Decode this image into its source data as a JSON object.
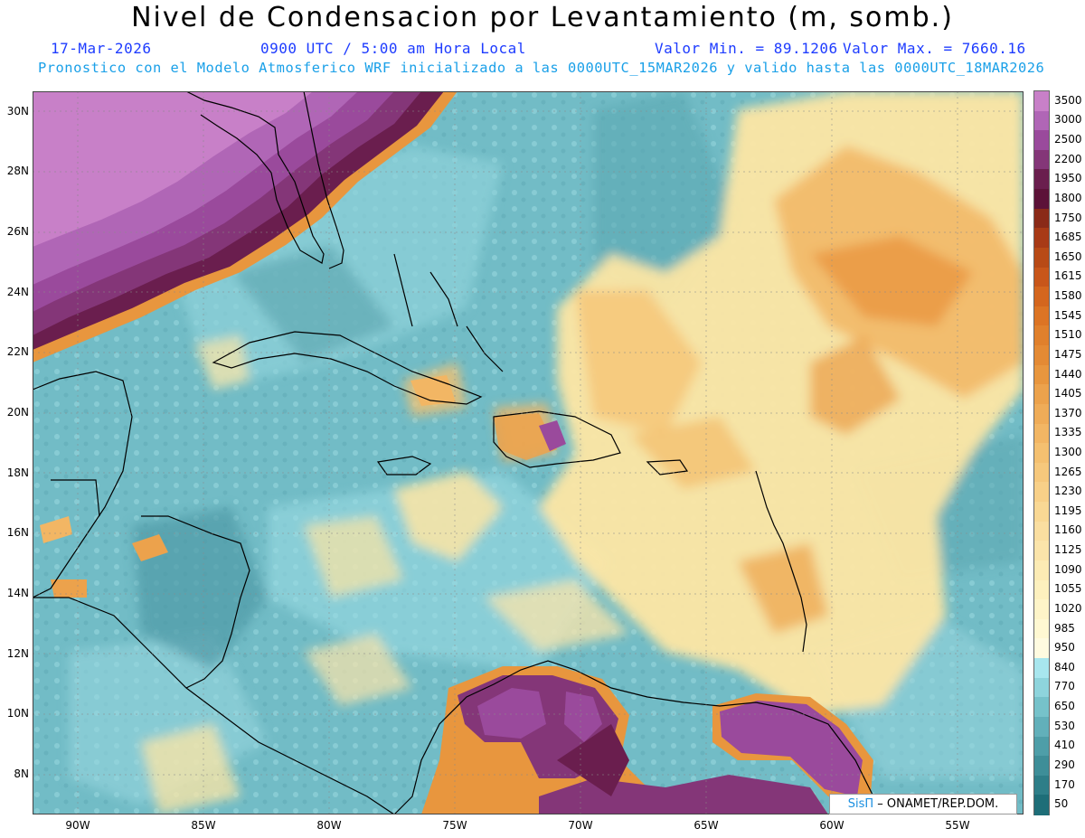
{
  "header": {
    "title": "Nivel de Condensacion por Levantamiento (m, somb.)",
    "date": "17-Mar-2026",
    "time": "0900 UTC / 5:00 am Hora Local",
    "min_label": "Valor Min. = 89.1206",
    "max_label": "Valor Max. = 7660.16",
    "model_line": "Pronostico con el Modelo Atmosferico WRF inicializado a las 0000UTC_15MAR2026 y valido hasta las  0000UTC_18MAR2026"
  },
  "map": {
    "lat_labels": [
      "30N",
      "28N",
      "26N",
      "24N",
      "22N",
      "20N",
      "18N",
      "16N",
      "14N",
      "12N",
      "10N",
      "8N"
    ],
    "lon_labels": [
      "90W",
      "85W",
      "80W",
      "75W",
      "70W",
      "65W",
      "60W",
      "55W"
    ],
    "lat_range": [
      7,
      31
    ],
    "lon_range": [
      -92,
      -52.6
    ],
    "credit_logo": "SisΠ",
    "credit_text": "– ONAMET/REP.DOM."
  },
  "colorbar": {
    "labels": [
      "3500",
      "3000",
      "2500",
      "2200",
      "1950",
      "1800",
      "1750",
      "1685",
      "1650",
      "1615",
      "1580",
      "1545",
      "1510",
      "1475",
      "1440",
      "1405",
      "1370",
      "1335",
      "1300",
      "1265",
      "1230",
      "1195",
      "1160",
      "1125",
      "1090",
      "1055",
      "1020",
      "985",
      "950",
      "840",
      "770",
      "650",
      "530",
      "410",
      "290",
      "170",
      "50"
    ],
    "colors": [
      "#c880c8",
      "#b066b6",
      "#9a4a9c",
      "#843678",
      "#6a1e4e",
      "#5c1238",
      "#8a2a18",
      "#a83a16",
      "#b84a16",
      "#c8561a",
      "#d4661e",
      "#dc7424",
      "#e0802c",
      "#e48a34",
      "#e8963e",
      "#eca24c",
      "#efac58",
      "#f2b664",
      "#f4c070",
      "#f6c87c",
      "#f8d088",
      "#f9d894",
      "#fadea0",
      "#fbe4aa",
      "#fcebb4",
      "#fdf0be",
      "#fef4c8",
      "#fff8d2",
      "#fffbe0",
      "#a8e6ee",
      "#8ed4dc",
      "#76c2ca",
      "#62b0ba",
      "#4e9ea8",
      "#3e8e98",
      "#2e7e88",
      "#1e6e78"
    ]
  }
}
